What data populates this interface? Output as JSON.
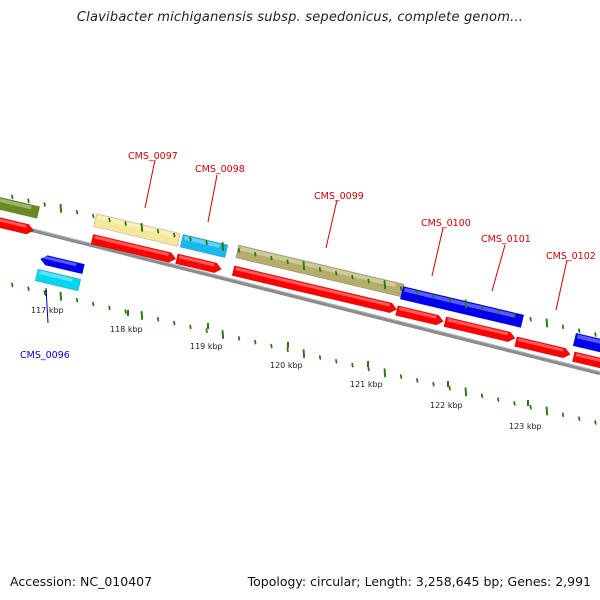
{
  "title": "Clavibacter michiganensis subsp. sepedonicus, complete genom...",
  "footer": {
    "accession": "Accession: NC_010407",
    "summary": "Topology: circular; Length: 3,258,645 bp; Genes: 2,991"
  },
  "colors": {
    "backbone": "#8c8c8c",
    "red": "#ff0000",
    "blue": "#0000ee",
    "cyan": "#00d6f0",
    "skyblue": "#1ab8ee",
    "olive": "#6b8a22",
    "khaki": "#b5ae6a",
    "paleyellow": "#f5e89a",
    "tick": "#2a7a14",
    "labelRed": "#d40000",
    "labelBlue": "#0000cc"
  },
  "scale": {
    "ticks": [
      {
        "label": "117 kbp"
      },
      {
        "label": "118 kbp"
      },
      {
        "label": "119 kbp"
      },
      {
        "label": "120 kbp"
      },
      {
        "label": "121 kbp"
      },
      {
        "label": "122 kbp"
      },
      {
        "label": "123 kbp"
      }
    ]
  },
  "genes": [
    {
      "label": "CMS_0096",
      "color": "blue"
    },
    {
      "label": "CMS_0097",
      "color": "red"
    },
    {
      "label": "CMS_0098",
      "color": "red"
    },
    {
      "label": "CMS_0099",
      "color": "red"
    },
    {
      "label": "CMS_0100",
      "color": "red"
    },
    {
      "label": "CMS_0101",
      "color": "red"
    },
    {
      "label": "CMS_0102",
      "color": "red"
    }
  ]
}
